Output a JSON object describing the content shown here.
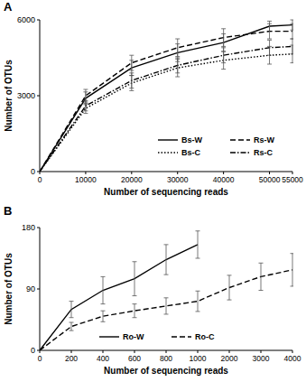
{
  "chart_data": [
    {
      "type": "line",
      "title": "A",
      "x_label": "Number of sequencing reads",
      "y_label": "Number of OTUs",
      "x": [
        0,
        10000,
        20000,
        30000,
        40000,
        50000,
        55000
      ],
      "xlim": [
        0,
        55000
      ],
      "xticks": [
        0,
        10000,
        20000,
        30000,
        40000,
        50000,
        55000
      ],
      "ylim": [
        0,
        6000
      ],
      "yticks": [
        0,
        3000,
        6000
      ],
      "legend": "lower right",
      "series": [
        {
          "name": "Bs-W",
          "color": "#000000",
          "line_style": "solid",
          "values": [
            0,
            2900,
            4100,
            4700,
            5100,
            5750,
            5800
          ],
          "errors": [
            0,
            250,
            300,
            350,
            350,
            200,
            200
          ]
        },
        {
          "name": "Rs-W",
          "color": "#000000",
          "line_style": "dashed",
          "values": [
            0,
            3000,
            4300,
            4900,
            5300,
            5550,
            5550
          ],
          "errors": [
            0,
            250,
            300,
            350,
            350,
            300,
            300
          ]
        },
        {
          "name": "Bs-C",
          "color": "#000000",
          "line_style": "dotted",
          "values": [
            0,
            2500,
            3500,
            4100,
            4400,
            4600,
            4650
          ],
          "errors": [
            0,
            200,
            300,
            350,
            350,
            350,
            350
          ]
        },
        {
          "name": "Rs-C",
          "color": "#000000",
          "line_style": "dashdot",
          "values": [
            0,
            2600,
            3600,
            4200,
            4600,
            4900,
            4950
          ],
          "errors": [
            0,
            200,
            300,
            300,
            300,
            300,
            300
          ]
        }
      ]
    },
    {
      "type": "line",
      "title": "B",
      "x_label": "Number of sequencing reads",
      "y_label": "Number of OTUs",
      "categories": [
        "0",
        "200",
        "400",
        "600",
        "800",
        "1000",
        "2000",
        "3000",
        "4000"
      ],
      "ylim": [
        0,
        180
      ],
      "yticks": [
        0,
        90,
        180
      ],
      "legend": "lower center",
      "series": [
        {
          "name": "Ro-W",
          "color": "#000000",
          "line_style": "solid",
          "values": [
            0,
            60,
            88,
            105,
            133,
            155,
            null,
            null,
            null
          ],
          "errors": [
            0,
            12,
            20,
            25,
            22,
            20,
            null,
            null,
            null
          ]
        },
        {
          "name": "Ro-C",
          "color": "#000000",
          "line_style": "dashed",
          "values": [
            0,
            35,
            50,
            58,
            65,
            72,
            92,
            108,
            118
          ],
          "errors": [
            0,
            6,
            8,
            10,
            12,
            15,
            18,
            20,
            24
          ]
        }
      ]
    }
  ]
}
